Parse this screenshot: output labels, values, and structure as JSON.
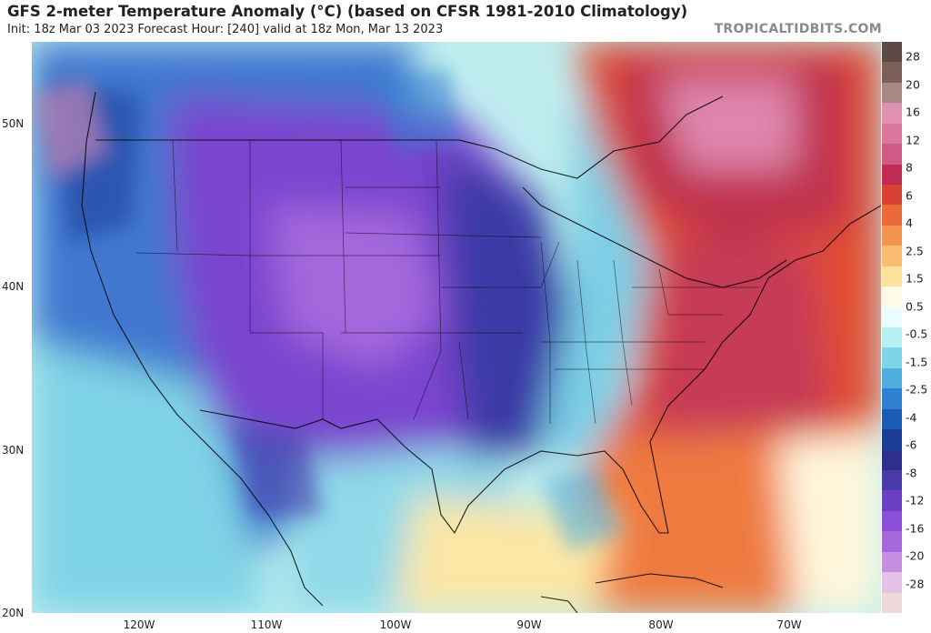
{
  "header": {
    "title": "GFS 2-meter Temperature Anomaly (°C) (based on CFSR 1981-2010 Climatology)",
    "subtitle": "Init: 18z Mar 03 2023   Forecast Hour: [240]   valid at 18z Mon, Mar 13 2023",
    "brand": "TROPICALTIDBITS.COM"
  },
  "axes": {
    "lat_labels": [
      "50N",
      "40N",
      "30N",
      "20N"
    ],
    "lon_labels": [
      "120W",
      "110W",
      "100W",
      "90W",
      "80W",
      "70W"
    ]
  },
  "colorbar": {
    "labels": [
      "28",
      "20",
      "16",
      "12",
      "8",
      "6",
      "4",
      "2.5",
      "1.5",
      "0.5",
      "-0.5",
      "-1.5",
      "-2.5",
      "-4",
      "-6",
      "-8",
      "-12",
      "-16",
      "-20",
      "-28"
    ],
    "colors": [
      "#5e4a44",
      "#7b6058",
      "#a98882",
      "#e091b3",
      "#d9779f",
      "#cf5a85",
      "#bf2e52",
      "#d94233",
      "#ec6a3a",
      "#f39550",
      "#f8bd6f",
      "#fbe39e",
      "#fffbe8",
      "#eafcfc",
      "#b5f1f2",
      "#7fd5e8",
      "#4eaee0",
      "#2d82cf",
      "#1a5cb4",
      "#1b3d98",
      "#2d2f8c",
      "#4b3aa9",
      "#6a3fc4",
      "#8b4ed6",
      "#a468dc",
      "#c68de0",
      "#e6c2e8",
      "#eedadc"
    ]
  }
}
